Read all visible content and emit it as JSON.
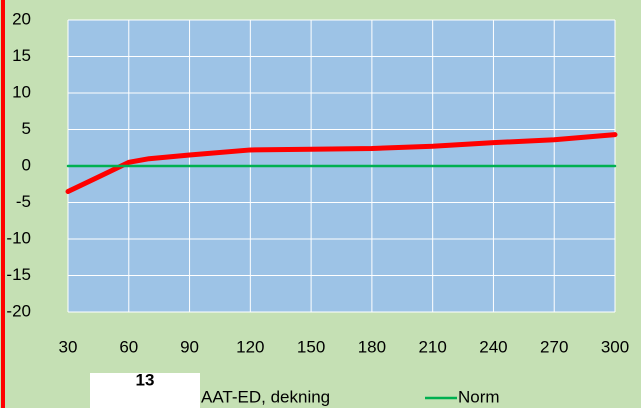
{
  "chart_data": {
    "type": "line",
    "x": [
      30,
      45,
      60,
      70,
      90,
      120,
      150,
      180,
      210,
      240,
      270,
      300
    ],
    "series": [
      {
        "name": "AAT-ED, dekning",
        "color": "#ff0000",
        "values": [
          -3.5,
          -1.5,
          0.5,
          1,
          1.5,
          2.2,
          2.3,
          2.4,
          2.7,
          3.2,
          3.6,
          4.3
        ]
      },
      {
        "name": "Norm",
        "color": "#00b050",
        "values": [
          0,
          0,
          0,
          0,
          0,
          0,
          0,
          0,
          0,
          0,
          0,
          0
        ]
      }
    ],
    "xlim": [
      30,
      300
    ],
    "xticks": [
      30,
      60,
      90,
      120,
      150,
      180,
      210,
      240,
      270,
      300
    ],
    "ylim": [
      -20,
      20
    ],
    "yticks": [
      -20,
      -15,
      -10,
      -5,
      0,
      5,
      10,
      15,
      20
    ],
    "grid": true,
    "legend": "bottom"
  },
  "badge": "13"
}
